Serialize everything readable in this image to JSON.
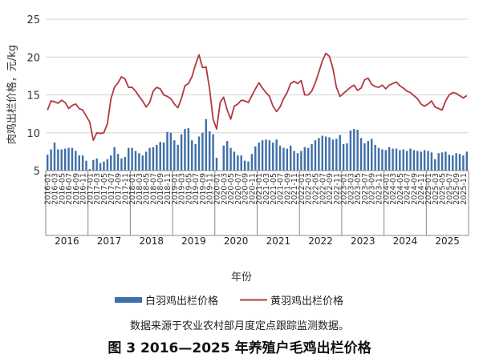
{
  "chart_data": {
    "type": "bar",
    "ylabel": "肉鸡出栏价格，元/kg",
    "xlabel": "年份",
    "ylim": [
      5,
      25
    ],
    "yticks": [
      5,
      10,
      15,
      20,
      25
    ],
    "grid": true,
    "legend_position": "bottom",
    "years": [
      "2016",
      "2017",
      "2018",
      "2019",
      "2020",
      "2021",
      "2022",
      "2023",
      "2024",
      "2025"
    ],
    "x": [
      "2016-01",
      "2016-02",
      "2016-03",
      "2016-04",
      "2016-05",
      "2016-06",
      "2016-07",
      "2016-08",
      "2016-09",
      "2016-10",
      "2016-11",
      "2016-12",
      "2017-01",
      "2017-02",
      "2017-03",
      "2017-04",
      "2017-05",
      "2017-06",
      "2017-07",
      "2017-08",
      "2017-09",
      "2017-10",
      "2017-11",
      "2017-12",
      "2018-01",
      "2018-02",
      "2018-03",
      "2018-04",
      "2018-05",
      "2018-06",
      "2018-07",
      "2018-08",
      "2018-09",
      "2018-10",
      "2018-11",
      "2018-12",
      "2019-01",
      "2019-02",
      "2019-03",
      "2019-04",
      "2019-05",
      "2019-06",
      "2019-07",
      "2019-08",
      "2019-09",
      "2019-10",
      "2019-11",
      "2019-12",
      "2020-01",
      "2020-02",
      "2020-03",
      "2020-04",
      "2020-05",
      "2020-06",
      "2020-07",
      "2020-08",
      "2020-09",
      "2020-10",
      "2020-11",
      "2020-12",
      "2021-01",
      "2021-02",
      "2021-03",
      "2021-04",
      "2021-05",
      "2021-06",
      "2021-07",
      "2021-08",
      "2021-09",
      "2021-10",
      "2021-11",
      "2021-12",
      "2022-01",
      "2022-02",
      "2022-03",
      "2022-04",
      "2022-05",
      "2022-06",
      "2022-07",
      "2022-08",
      "2022-09",
      "2022-10",
      "2022-11",
      "2022-12",
      "2023-01",
      "2023-02",
      "2023-03",
      "2023-04",
      "2023-05",
      "2023-06",
      "2023-07",
      "2023-08",
      "2023-09",
      "2023-10",
      "2023-11",
      "2023-12",
      "2024-01",
      "2024-02",
      "2024-03",
      "2024-04",
      "2024-05",
      "2024-06",
      "2024-07",
      "2024-08",
      "2024-09",
      "2024-10",
      "2024-11",
      "2024-12",
      "2025-01",
      "2025-02",
      "2025-03",
      "2025-04",
      "2025-05",
      "2025-06",
      "2025-07",
      "2025-08",
      "2025-09",
      "2025-10",
      "2025-11",
      "2025-12"
    ],
    "tick_labels": [
      "2016-01",
      "2016-03",
      "2016-05",
      "2016-07",
      "2016-09",
      "2016-11",
      "2017-01",
      "2017-03",
      "2017-05",
      "2017-07",
      "2017-09",
      "2017-11",
      "2018-01",
      "2018-03",
      "2018-05",
      "2018-07",
      "2018-09",
      "2018-11",
      "2019-01",
      "2019-03",
      "2019-05",
      "2019-07",
      "2019-09",
      "2019-11",
      "2020-01",
      "2020-03",
      "2020-05",
      "2020-07",
      "2020-09",
      "2020-11",
      "2021-01",
      "2021-03",
      "2021-05",
      "2021-07",
      "2021-09",
      "2021-11",
      "2022-01",
      "2022-03",
      "2022-05",
      "2022-07",
      "2022-09",
      "2022-11",
      "2023-01",
      "2023-03",
      "2023-05",
      "2023-07",
      "2023-09",
      "2023-11",
      "2024-01",
      "2024-03",
      "2024-05",
      "2024-07",
      "2024-09",
      "2024-11",
      "2025-01",
      "2025-03",
      "2025-05",
      "2025-07",
      "2025-09",
      "2025-11"
    ],
    "series": [
      {
        "name": "白羽鸡出栏价格",
        "type": "bar",
        "color": "#3f6fa8",
        "values": [
          7.1,
          7.8,
          8.7,
          7.8,
          7.8,
          7.9,
          8.0,
          8.0,
          7.6,
          7.0,
          7.0,
          6.3,
          5.2,
          6.4,
          6.6,
          6.0,
          6.2,
          6.5,
          7.0,
          8.1,
          7.2,
          6.6,
          6.8,
          8.0,
          8.0,
          7.6,
          7.3,
          7.0,
          7.5,
          8.0,
          8.1,
          8.4,
          8.8,
          8.7,
          10.1,
          10.0,
          9.0,
          8.4,
          9.8,
          10.5,
          10.6,
          9.0,
          8.5,
          9.5,
          10.0,
          11.8,
          10.2,
          9.8,
          6.7,
          5.0,
          8.3,
          8.9,
          8.0,
          7.5,
          7.0,
          7.0,
          6.3,
          6.2,
          7.2,
          8.2,
          8.7,
          9.0,
          9.1,
          9.0,
          8.7,
          9.1,
          8.3,
          8.0,
          7.9,
          8.3,
          7.6,
          7.3,
          7.6,
          8.1,
          8.0,
          8.5,
          9.0,
          9.3,
          9.6,
          9.5,
          9.4,
          9.1,
          9.2,
          9.7,
          8.5,
          8.6,
          10.3,
          10.5,
          10.4,
          9.3,
          8.6,
          8.9,
          9.2,
          8.4,
          8.0,
          7.8,
          7.7,
          8.1,
          7.9,
          7.9,
          7.7,
          7.8,
          7.6,
          7.9,
          7.7,
          7.6,
          7.5,
          7.7,
          7.6,
          7.4,
          6.5,
          7.3,
          7.4,
          7.5,
          7.1,
          7.0,
          7.3,
          7.2,
          7.0,
          7.5
        ]
      },
      {
        "name": "黄羽鸡出栏价格",
        "type": "line",
        "color": "#b1393f",
        "values": [
          13.0,
          14.2,
          14.1,
          13.9,
          14.3,
          14.0,
          13.2,
          13.6,
          13.8,
          13.2,
          13.0,
          12.2,
          11.4,
          9.0,
          10.0,
          9.9,
          10.0,
          11.2,
          14.5,
          16.0,
          16.6,
          17.4,
          17.1,
          16.0,
          16.0,
          15.5,
          14.8,
          14.2,
          13.4,
          14.0,
          15.5,
          16.0,
          15.8,
          15.0,
          14.8,
          14.5,
          13.8,
          13.3,
          14.5,
          16.2,
          16.5,
          17.4,
          19.0,
          20.3,
          18.6,
          18.7,
          15.8,
          11.8,
          10.5,
          14.0,
          14.7,
          13.0,
          11.8,
          13.5,
          13.8,
          14.3,
          14.2,
          14.0,
          14.9,
          15.8,
          16.6,
          15.9,
          15.3,
          14.8,
          13.5,
          12.8,
          13.4,
          14.5,
          15.3,
          16.5,
          16.8,
          16.5,
          16.9,
          15.0,
          15.0,
          15.5,
          16.6,
          18.0,
          19.5,
          20.5,
          20.1,
          18.5,
          16.0,
          14.8,
          15.2,
          15.6,
          16.0,
          16.3,
          15.6,
          15.9,
          17.0,
          17.2,
          16.4,
          16.1,
          16.0,
          16.3,
          15.8,
          16.3,
          16.5,
          16.7,
          16.2,
          15.9,
          15.5,
          15.3,
          14.9,
          14.5,
          13.8,
          13.5,
          13.8,
          14.2,
          13.4,
          13.2,
          13.0,
          14.2,
          15.0,
          15.3,
          15.2,
          14.9,
          14.6,
          14.9
        ]
      }
    ]
  },
  "legend": {
    "bar_label": "白羽鸡出栏价格",
    "line_label": "黄羽鸡出栏价格"
  },
  "source_note": "数据来源于农业农村部月度定点跟踪监测数据。",
  "figure_title": "图 3 2016—2025 年养殖户毛鸡出栏价格"
}
